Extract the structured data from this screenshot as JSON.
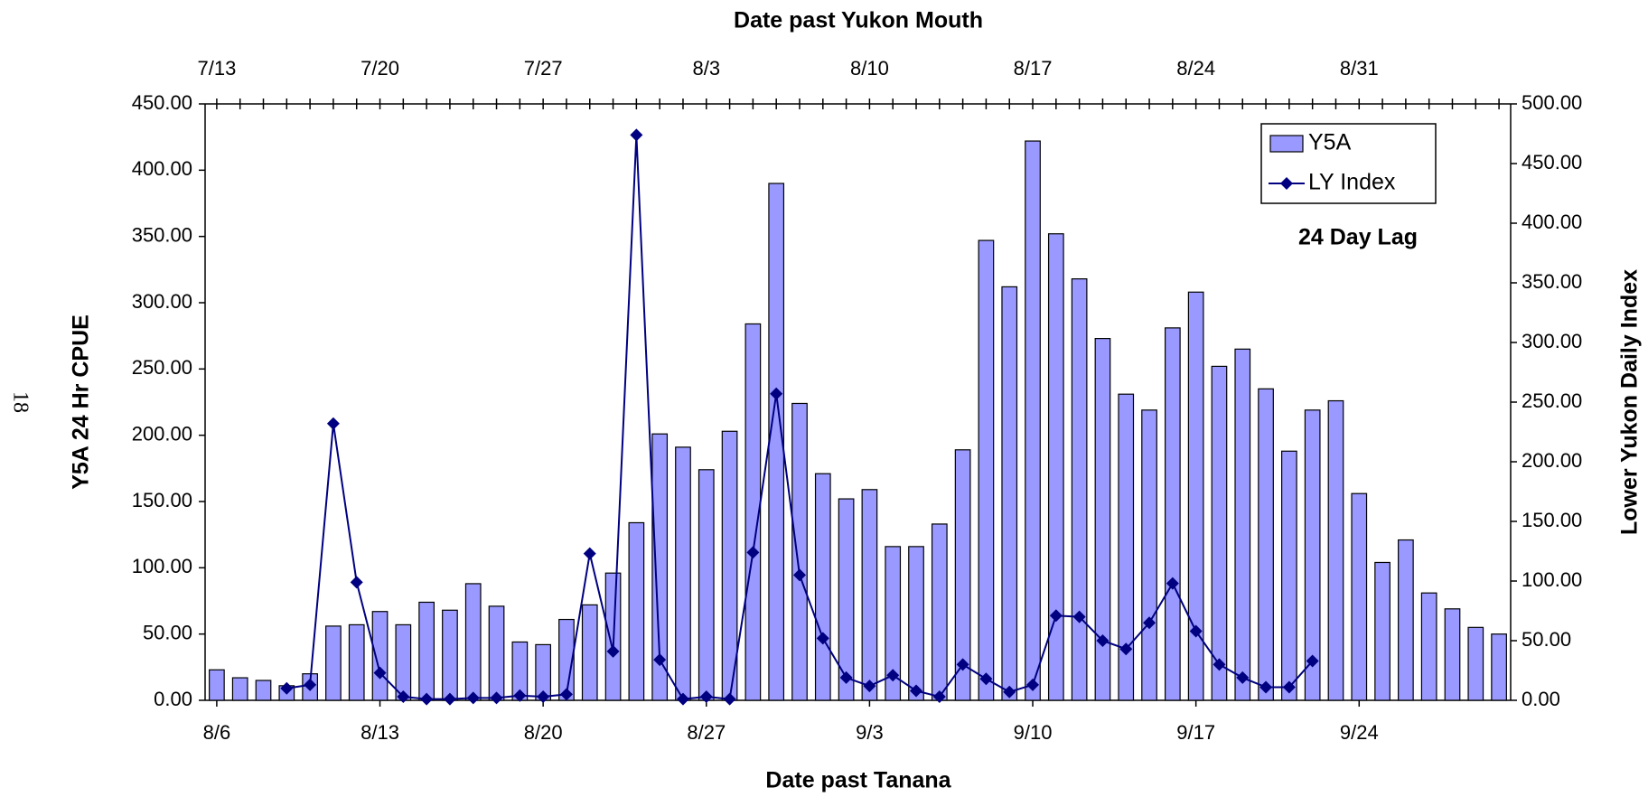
{
  "page_number": "18",
  "chart_data": {
    "type": "bar_line",
    "title": "Date past Yukon Mouth",
    "x_label": "Date past Tanana",
    "y_label": "Y5A 24 Hr CPUE",
    "y2_label": "Lower Yukon Daily Index",
    "annotation": "24 Day Lag",
    "legend": "upper right",
    "categories": [
      "8/6",
      null,
      null,
      null,
      null,
      null,
      null,
      "8/13",
      null,
      null,
      null,
      null,
      null,
      null,
      "8/20",
      null,
      null,
      null,
      null,
      null,
      null,
      "8/27",
      null,
      null,
      null,
      null,
      null,
      null,
      "9/3",
      null,
      null,
      null,
      null,
      null,
      null,
      "9/10",
      null,
      null,
      null,
      null,
      null,
      null,
      "9/17",
      null,
      null,
      null,
      null,
      null,
      null,
      "9/24",
      null,
      null,
      null,
      null,
      null,
      null
    ],
    "x2_categories": [
      "7/13",
      null,
      null,
      null,
      null,
      null,
      null,
      "7/20",
      null,
      null,
      null,
      null,
      null,
      null,
      "7/27",
      null,
      null,
      null,
      null,
      null,
      null,
      "8/3",
      null,
      null,
      null,
      null,
      null,
      null,
      "8/10",
      null,
      null,
      null,
      null,
      null,
      null,
      "8/17",
      null,
      null,
      null,
      null,
      null,
      null,
      "8/24",
      null,
      null,
      null,
      null,
      null,
      null,
      "8/31",
      null,
      null,
      null,
      null,
      null,
      null
    ],
    "series": [
      {
        "name": "Y5A",
        "color": "#9999ff",
        "values": [
          23,
          17,
          15,
          11,
          20,
          56,
          57,
          67,
          57,
          74,
          68,
          88,
          71,
          44,
          42,
          61,
          72,
          96,
          134,
          201,
          191,
          174,
          203,
          284,
          390,
          224,
          171,
          152,
          159,
          116,
          116,
          133,
          189,
          347,
          312,
          422,
          352,
          318,
          273,
          231,
          219,
          281,
          308,
          252,
          265,
          235,
          188,
          219,
          226,
          156,
          104,
          121,
          81,
          69,
          55,
          50
        ]
      },
      {
        "name": "LY Index",
        "color": "#000080",
        "axis": "y2",
        "values": [
          null,
          null,
          null,
          10,
          13,
          232,
          99,
          23,
          3,
          1,
          1,
          2,
          2,
          4,
          3,
          5,
          123,
          41,
          474,
          34,
          1,
          3,
          1,
          124,
          257,
          105,
          52,
          19,
          12,
          21,
          8,
          3,
          30,
          18,
          7,
          13,
          71,
          70,
          50,
          43,
          65,
          98,
          58,
          30,
          19,
          11,
          11,
          33,
          null,
          null,
          null,
          null,
          null,
          null,
          null,
          null
        ]
      }
    ],
    "ylim": [
      0,
      450
    ],
    "yticks": [
      {
        "value": 0,
        "label": "0.00"
      },
      {
        "value": 50,
        "label": "50.00"
      },
      {
        "value": 100,
        "label": "100.00"
      },
      {
        "value": 150,
        "label": "150.00"
      },
      {
        "value": 200,
        "label": "200.00"
      },
      {
        "value": 250,
        "label": "250.00"
      },
      {
        "value": 300,
        "label": "300.00"
      },
      {
        "value": 350,
        "label": "350.00"
      },
      {
        "value": 400,
        "label": "400.00"
      },
      {
        "value": 450,
        "label": "450.00"
      }
    ],
    "y2lim": [
      0,
      500
    ],
    "y2ticks": [
      {
        "value": 0,
        "label": "0.00"
      },
      {
        "value": 50,
        "label": "50.00"
      },
      {
        "value": 100,
        "label": "100.00"
      },
      {
        "value": 150,
        "label": "150.00"
      },
      {
        "value": 200,
        "label": "200.00"
      },
      {
        "value": 250,
        "label": "250.00"
      },
      {
        "value": 300,
        "label": "300.00"
      },
      {
        "value": 350,
        "label": "350.00"
      },
      {
        "value": 400,
        "label": "400.00"
      },
      {
        "value": 450,
        "label": "450.00"
      },
      {
        "value": 500,
        "label": "500.00"
      }
    ]
  }
}
